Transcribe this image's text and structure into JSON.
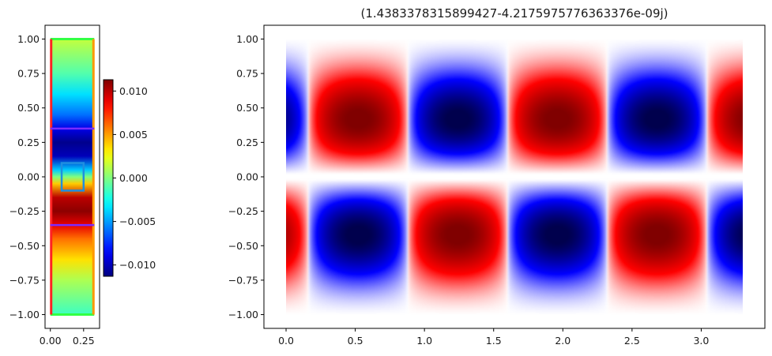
{
  "chart_data": [
    {
      "type": "heatmap",
      "title": "",
      "xlabel": "",
      "ylabel": "",
      "xlim": [
        -0.04,
        0.37
      ],
      "ylim": [
        -1.1,
        1.1
      ],
      "x_ticks": [
        "0.00",
        "0.25"
      ],
      "x_tick_values": [
        0.0,
        0.25
      ],
      "y_ticks": [
        "−1.00",
        "−0.75",
        "−0.50",
        "−0.25",
        "0.00",
        "0.25",
        "0.50",
        "0.75",
        "1.00"
      ],
      "y_tick_values": [
        -1.0,
        -0.75,
        -0.5,
        -0.25,
        0.0,
        0.25,
        0.5,
        0.75,
        1.0
      ],
      "colormap": "jet",
      "cross_section_profile": {
        "y": [
          1.0,
          0.9,
          0.75,
          0.6,
          0.45,
          0.35,
          0.25,
          0.15,
          0.05,
          0.0,
          -0.05,
          -0.15,
          -0.25,
          -0.35,
          -0.45,
          -0.6,
          -0.75,
          -0.9,
          -1.0
        ],
        "value": [
          0.0015,
          0.0005,
          -0.001,
          -0.0035,
          -0.006,
          -0.009,
          -0.011,
          -0.01,
          -0.004,
          0.0,
          0.004,
          0.01,
          0.011,
          0.009,
          0.006,
          0.0035,
          0.001,
          -0.0005,
          -0.0015
        ]
      },
      "overlays": {
        "outline_bottom_top_color": "#33ff44",
        "outline_left_color": "#ff2222",
        "outline_right_color": "#ff9900",
        "horizontal_lines_y": [
          0.35,
          -0.35
        ],
        "horizontal_lines_color": "#7a2cff",
        "inner_box": {
          "x": [
            0.085,
            0.25
          ],
          "y": [
            -0.1,
            0.1
          ]
        },
        "inner_box_color": "#1f8fe0"
      },
      "colorbar": {
        "ticks": [
          "0.010",
          "0.005",
          "0.000",
          "−0.005",
          "−0.010"
        ],
        "tick_values": [
          0.01,
          0.005,
          0.0,
          -0.005,
          -0.01
        ],
        "range": [
          -0.0113,
          0.0113
        ],
        "colormap": "jet"
      }
    },
    {
      "type": "heatmap",
      "title": "(1.4383378315899427-4.2175975776363376e-09j)",
      "xlabel": "",
      "ylabel": "",
      "xlim": [
        -0.16,
        3.46
      ],
      "ylim": [
        -1.1,
        1.1
      ],
      "x_ticks": [
        "0.0",
        "0.5",
        "1.0",
        "1.5",
        "2.0",
        "2.5",
        "3.0"
      ],
      "x_tick_values": [
        0.0,
        0.5,
        1.0,
        1.5,
        2.0,
        2.5,
        3.0
      ],
      "y_ticks": [
        "−1.00",
        "−0.75",
        "−0.50",
        "−0.25",
        "0.00",
        "0.25",
        "0.50",
        "0.75",
        "1.00"
      ],
      "y_tick_values": [
        -1.0,
        -0.75,
        -0.5,
        -0.25,
        0.0,
        0.25,
        0.5,
        0.75,
        1.0
      ],
      "colormap": "seismic",
      "extent": {
        "x": [
          0.0,
          3.3
        ],
        "y": [
          -1.0,
          1.0
        ]
      },
      "wave": {
        "half_period": 0.72,
        "phase_offset": 0.16,
        "lobe_centers_y": [
          0.28,
          -0.28
        ]
      }
    }
  ]
}
